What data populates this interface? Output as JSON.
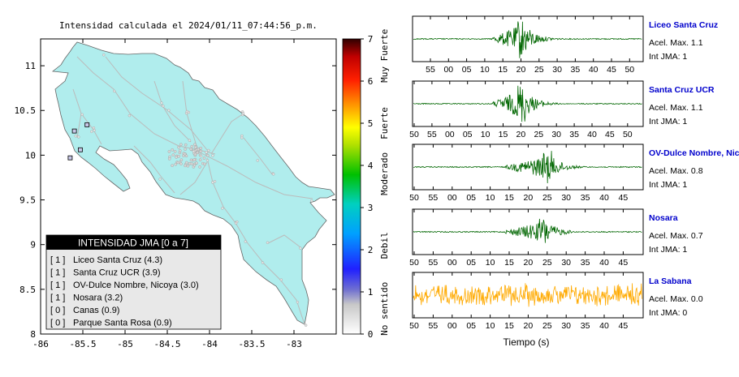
{
  "map": {
    "title": "Intensidad calculada el 2024/01/11_07:44:56_p.m.",
    "x_ticks": [
      "-86",
      "-85.5",
      "-85",
      "-84.5",
      "-84",
      "-83.5",
      "-83"
    ],
    "y_ticks": [
      "11",
      "10.5",
      "10",
      "9.5",
      "9",
      "8.5",
      "8"
    ],
    "xlim": [
      -86,
      -82.5
    ],
    "ylim": [
      8,
      11.3
    ],
    "land_color": "#b0eded",
    "road_color": "#bbbbbb"
  },
  "colorbar": {
    "ticks": [
      "0",
      "1",
      "2",
      "3",
      "4",
      "5",
      "6",
      "7"
    ],
    "labels": [
      "No sentido",
      "Debil",
      "Moderado",
      "Fuerte",
      "Muy Fuerte"
    ]
  },
  "legend": {
    "title": "INTENSIDAD JMA [0 a 7]",
    "items": [
      {
        "level": "[ 1 ]",
        "name": "Liceo Santa Cruz (4.3)"
      },
      {
        "level": "[ 1 ]",
        "name": "Santa Cruz UCR (3.9)"
      },
      {
        "level": "[ 1 ]",
        "name": "OV-Dulce Nombre, Nicoya (3.0)"
      },
      {
        "level": "[ 1 ]",
        "name": "Nosara (3.2)"
      },
      {
        "level": "[ 0 ]",
        "name": "Canas (0.9)"
      },
      {
        "level": "[ 0 ]",
        "name": "Parque Santa Rosa (0.9)"
      }
    ]
  },
  "chart_data": [
    {
      "type": "scatter",
      "title": "Intensidad calculada el 2024/01/11_07:44:56_p.m.",
      "series": [
        {
          "points": [
            {
              "x": -85.6,
              "y": 10.27
            },
            {
              "x": -85.45,
              "y": 10.34
            },
            {
              "x": -85.53,
              "y": 10.06
            },
            {
              "x": -85.65,
              "y": 9.97
            }
          ]
        }
      ],
      "xlim": [
        -86,
        -82.5
      ],
      "ylim": [
        8,
        11.3
      ]
    },
    {
      "type": "line",
      "xlabel": "Tiempo (s)",
      "panels": [
        {
          "station": "Liceo Santa Cruz",
          "accel": "Acel. Max. 1.1",
          "jma": "Int JMA: 1",
          "color": "#006600",
          "ticks": [
            "55",
            "00",
            "05",
            "10",
            "15",
            "20",
            "25",
            "30",
            "35",
            "40",
            "45",
            "50"
          ],
          "onset": 12,
          "peak": 20,
          "end": 33,
          "amplitude": 1.0
        },
        {
          "station": "Santa Cruz UCR",
          "accel": "Acel. Max. 1.1",
          "jma": "Int JMA: 1",
          "color": "#006600",
          "ticks": [
            "50",
            "55",
            "00",
            "05",
            "10",
            "15",
            "20",
            "25",
            "30",
            "35",
            "40",
            "45",
            "50"
          ],
          "onset": 12,
          "peak": 20,
          "end": 36,
          "amplitude": 1.0
        },
        {
          "station": "OV-Dulce Nombre, Nicoya",
          "accel": "Acel. Max. 0.8",
          "jma": "Int JMA: 1",
          "color": "#006600",
          "ticks": [
            "50",
            "55",
            "00",
            "05",
            "10",
            "15",
            "20",
            "25",
            "30",
            "35",
            "40",
            "45"
          ],
          "onset": 14,
          "peak": 25,
          "end": 38,
          "amplitude": 0.8
        },
        {
          "station": "Nosara",
          "accel": "Acel. Max. 0.7",
          "jma": "Int JMA: 1",
          "color": "#006600",
          "ticks": [
            "50",
            "55",
            "00",
            "05",
            "10",
            "15",
            "20",
            "25",
            "30",
            "35",
            "40",
            "45"
          ],
          "onset": 14,
          "peak": 24,
          "end": 32,
          "amplitude": 0.7
        },
        {
          "station": "La Sabana",
          "accel": "Acel. Max. 0.0",
          "jma": "Int JMA: 0",
          "color": "#ffaa00",
          "ticks": [
            "50",
            "55",
            "00",
            "05",
            "10",
            "15",
            "20",
            "25",
            "30",
            "35",
            "40",
            "45"
          ],
          "noise": true,
          "amplitude": 0.6
        }
      ]
    }
  ]
}
